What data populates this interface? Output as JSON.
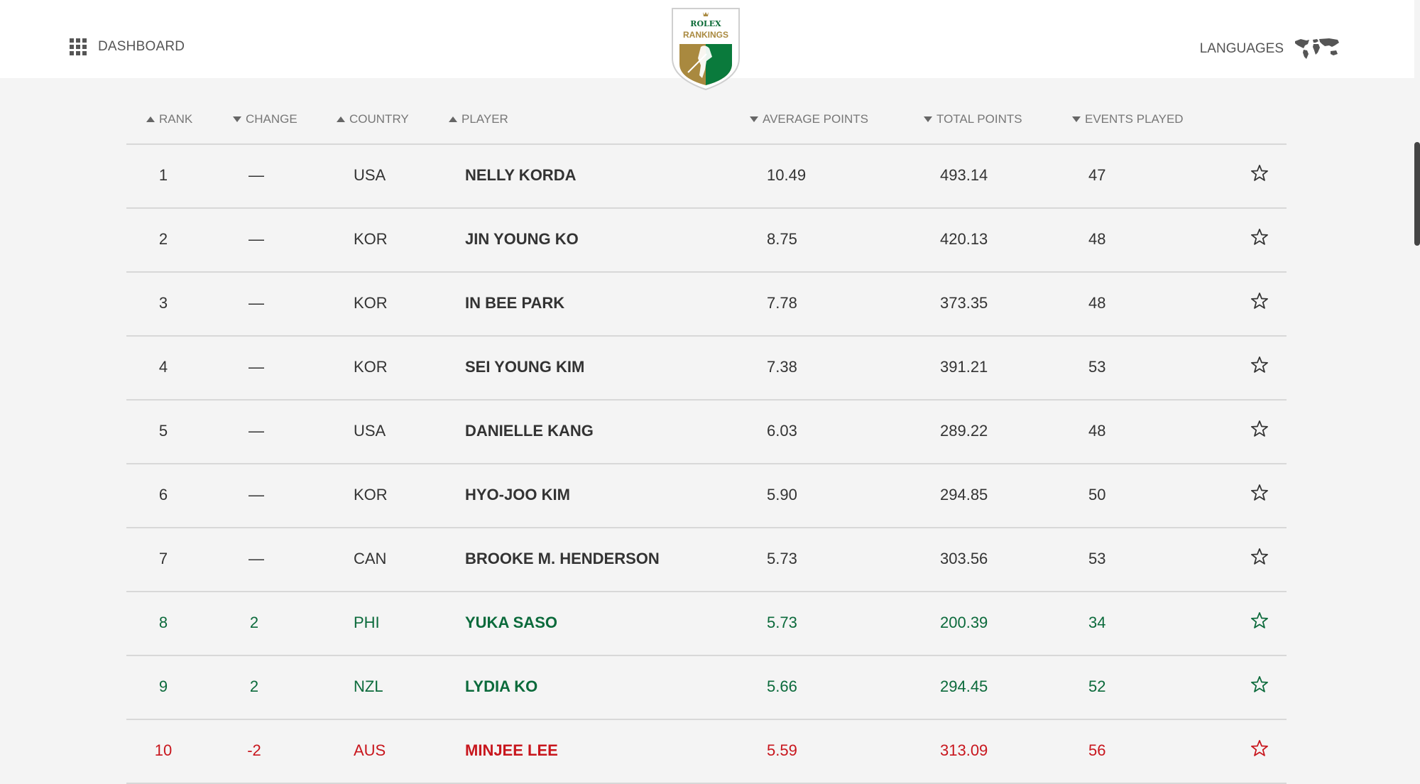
{
  "header": {
    "dashboard_label": "DASHBOARD",
    "languages_label": "LANGUAGES",
    "logo": {
      "line1": "ROLEX",
      "line2": "RANKINGS"
    }
  },
  "columns": [
    {
      "key": "rank",
      "label": "RANK",
      "sort": "up"
    },
    {
      "key": "change",
      "label": "CHANGE",
      "sort": "down"
    },
    {
      "key": "country",
      "label": "COUNTRY",
      "sort": "up"
    },
    {
      "key": "player",
      "label": "PLAYER",
      "sort": "up"
    },
    {
      "key": "avg",
      "label": "AVERAGE POINTS",
      "sort": "down"
    },
    {
      "key": "total",
      "label": "TOTAL POINTS",
      "sort": "down"
    },
    {
      "key": "events",
      "label": "EVENTS PLAYED",
      "sort": "down"
    }
  ],
  "colors": {
    "neutral": "#333333",
    "up": "#0b6a3b",
    "down": "#c8161d",
    "logo_green": "#0a7a3c",
    "logo_gold": "#a9893f"
  },
  "rows": [
    {
      "rank": "1",
      "change": "—",
      "country": "USA",
      "player": "NELLY KORDA",
      "avg": "10.49",
      "total": "493.14",
      "events": "47",
      "status": "neutral"
    },
    {
      "rank": "2",
      "change": "—",
      "country": "KOR",
      "player": "JIN YOUNG KO",
      "avg": "8.75",
      "total": "420.13",
      "events": "48",
      "status": "neutral"
    },
    {
      "rank": "3",
      "change": "—",
      "country": "KOR",
      "player": "IN BEE PARK",
      "avg": "7.78",
      "total": "373.35",
      "events": "48",
      "status": "neutral"
    },
    {
      "rank": "4",
      "change": "—",
      "country": "KOR",
      "player": "SEI YOUNG KIM",
      "avg": "7.38",
      "total": "391.21",
      "events": "53",
      "status": "neutral"
    },
    {
      "rank": "5",
      "change": "—",
      "country": "USA",
      "player": "DANIELLE KANG",
      "avg": "6.03",
      "total": "289.22",
      "events": "48",
      "status": "neutral"
    },
    {
      "rank": "6",
      "change": "—",
      "country": "KOR",
      "player": "HYO-JOO KIM",
      "avg": "5.90",
      "total": "294.85",
      "events": "50",
      "status": "neutral"
    },
    {
      "rank": "7",
      "change": "—",
      "country": "CAN",
      "player": "BROOKE M. HENDERSON",
      "avg": "5.73",
      "total": "303.56",
      "events": "53",
      "status": "neutral"
    },
    {
      "rank": "8",
      "change": "2",
      "country": "PHI",
      "player": "YUKA SASO",
      "avg": "5.73",
      "total": "200.39",
      "events": "34",
      "status": "up"
    },
    {
      "rank": "9",
      "change": "2",
      "country": "NZL",
      "player": "LYDIA KO",
      "avg": "5.66",
      "total": "294.45",
      "events": "52",
      "status": "up"
    },
    {
      "rank": "10",
      "change": "-2",
      "country": "AUS",
      "player": "MINJEE LEE",
      "avg": "5.59",
      "total": "313.09",
      "events": "56",
      "status": "down"
    }
  ]
}
